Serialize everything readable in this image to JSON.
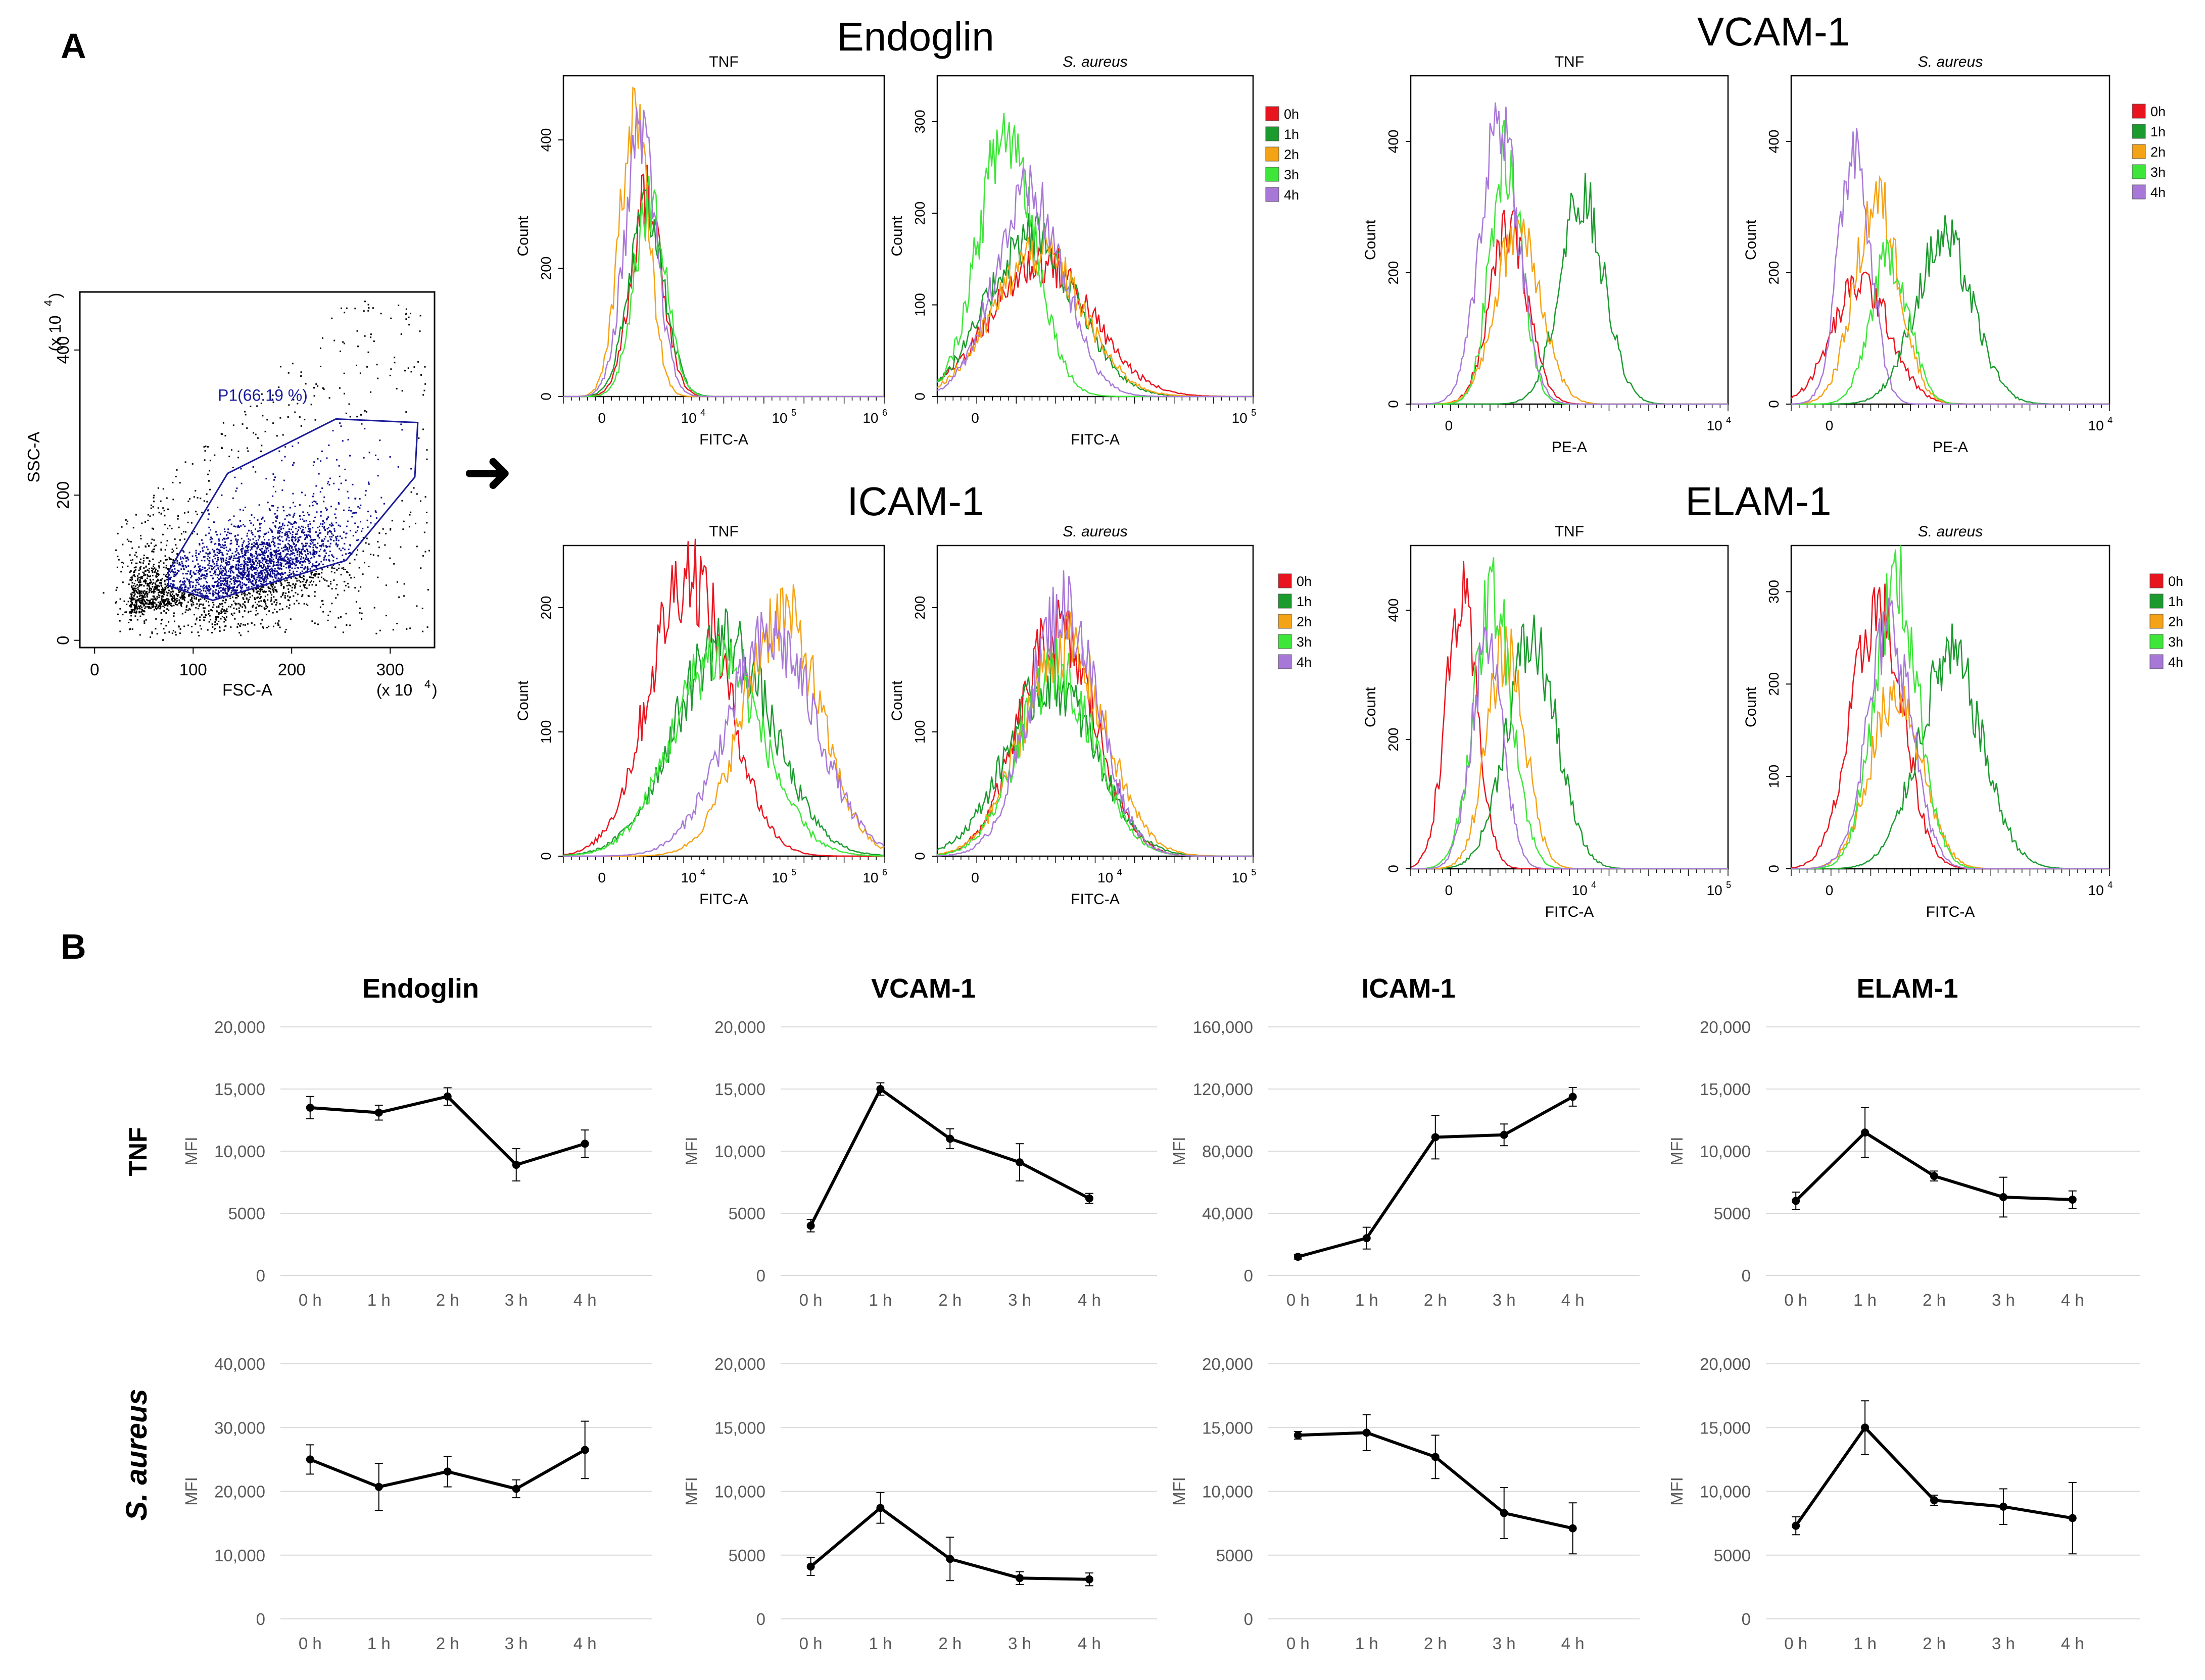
{
  "panels": {
    "a": "A",
    "b": "B"
  },
  "scatter": {
    "gate_label": "P1(66.19 %)",
    "xlabel": "FSC-A",
    "ylabel": "SSC-A",
    "x_exp": "(x 10",
    "y_exp": "(x 10",
    "exp_power": "4",
    "close": ")",
    "xticks": [
      "0",
      "100",
      "200",
      "300"
    ],
    "yticks": [
      "0",
      "200",
      "400"
    ],
    "colors": {
      "gated": "#0a0a8c",
      "ungated": "#000000",
      "gate": "#1a1a9a"
    }
  },
  "arrow": "➜",
  "histogram_groups": [
    {
      "title": "Endoglin",
      "xlabel": "FITC-A",
      "sub": [
        {
          "title": "TNF",
          "italic": false,
          "yticks": [
            "0",
            "200",
            "400"
          ],
          "xticks": [
            "0",
            "10^4",
            "10^5",
            "10^6"
          ]
        },
        {
          "title": "S. aureus",
          "italic": true,
          "yticks": [
            "0",
            "100",
            "200",
            "300"
          ],
          "xticks": [
            "0",
            "10^5"
          ]
        }
      ]
    },
    {
      "title": "VCAM-1",
      "xlabel": "PE-A",
      "sub": [
        {
          "title": "TNF",
          "italic": false,
          "yticks": [
            "0",
            "200",
            "400"
          ],
          "xticks": [
            "0",
            "10^4"
          ]
        },
        {
          "title": "S. aureus",
          "italic": true,
          "yticks": [
            "0",
            "200",
            "400"
          ],
          "xticks": [
            "0",
            "10^4"
          ]
        }
      ]
    },
    {
      "title": "ICAM-1",
      "xlabel": "FITC-A",
      "sub": [
        {
          "title": "TNF",
          "italic": false,
          "yticks": [
            "0",
            "100",
            "200"
          ],
          "xticks": [
            "0",
            "10^4",
            "10^5",
            "10^6"
          ]
        },
        {
          "title": "S. aureus",
          "italic": true,
          "yticks": [
            "0",
            "100",
            "200"
          ],
          "xticks": [
            "0",
            "10^4",
            "10^5"
          ]
        }
      ]
    },
    {
      "title": "ELAM-1",
      "xlabel": "FITC-A",
      "sub": [
        {
          "title": "TNF",
          "italic": false,
          "yticks": [
            "0",
            "200",
            "400"
          ],
          "xticks": [
            "0",
            "10^4",
            "10^5"
          ]
        },
        {
          "title": "S. aureus",
          "italic": true,
          "yticks": [
            "0",
            "100",
            "200",
            "300"
          ],
          "xticks": [
            "0",
            "10^4"
          ]
        }
      ]
    }
  ],
  "histogram_ylabel": "Count",
  "legend": [
    {
      "label": "0h",
      "color": "#e8141e"
    },
    {
      "label": "1h",
      "color": "#1b9a2e"
    },
    {
      "label": "2h",
      "color": "#f5a316"
    },
    {
      "label": "3h",
      "color": "#3ee63a"
    },
    {
      "label": "4h",
      "color": "#a878d8"
    }
  ],
  "row_labels": {
    "tnf": "TNF",
    "saureus": "S. aureus"
  },
  "chart_data": [
    {
      "type": "line",
      "title": "Endoglin",
      "row": "TNF",
      "ylabel": "MFI",
      "categories": [
        "0 h",
        "1 h",
        "2 h",
        "3 h",
        "4 h"
      ],
      "values": [
        13500,
        13100,
        14400,
        8900,
        10600
      ],
      "errors": [
        900,
        600,
        700,
        1300,
        1100
      ],
      "ylim": [
        0,
        20000
      ],
      "yticks": [
        0,
        5000,
        10000,
        15000,
        20000
      ],
      "ytick_labels": [
        "0",
        "5000",
        "10,000",
        "15,000",
        "20,000"
      ]
    },
    {
      "type": "line",
      "title": "VCAM-1",
      "row": "TNF",
      "ylabel": "MFI",
      "categories": [
        "0 h",
        "1 h",
        "2 h",
        "3 h",
        "4 h"
      ],
      "values": [
        4000,
        15000,
        11000,
        9100,
        6200
      ],
      "errors": [
        500,
        500,
        800,
        1500,
        400
      ],
      "ylim": [
        0,
        20000
      ],
      "yticks": [
        0,
        5000,
        10000,
        15000,
        20000
      ],
      "ytick_labels": [
        "0",
        "5000",
        "10,000",
        "15,000",
        "20,000"
      ]
    },
    {
      "type": "line",
      "title": "ICAM-1",
      "row": "TNF",
      "ylabel": "MFI",
      "categories": [
        "0 h",
        "1 h",
        "2 h",
        "3 h",
        "4 h"
      ],
      "values": [
        12000,
        24000,
        89000,
        90500,
        115000
      ],
      "errors": [
        1500,
        7000,
        14000,
        7000,
        6000
      ],
      "ylim": [
        0,
        160000
      ],
      "yticks": [
        0,
        40000,
        80000,
        120000,
        160000
      ],
      "ytick_labels": [
        "0",
        "40,000",
        "80,000",
        "120,000",
        "160,000"
      ]
    },
    {
      "type": "line",
      "title": "ELAM-1",
      "row": "TNF",
      "ylabel": "MFI",
      "categories": [
        "0 h",
        "1 h",
        "2 h",
        "3 h",
        "4 h"
      ],
      "values": [
        6000,
        11500,
        8000,
        6300,
        6100
      ],
      "errors": [
        700,
        2000,
        400,
        1600,
        700
      ],
      "ylim": [
        0,
        20000
      ],
      "yticks": [
        0,
        5000,
        10000,
        15000,
        20000
      ],
      "ytick_labels": [
        "0",
        "5000",
        "10,000",
        "15,000",
        "20,000"
      ]
    },
    {
      "type": "line",
      "title": "",
      "row": "S. aureus",
      "ylabel": "MFI",
      "categories": [
        "0 h",
        "1 h",
        "2 h",
        "3 h",
        "4 h"
      ],
      "values": [
        25000,
        20700,
        23100,
        20400,
        26500
      ],
      "errors": [
        2300,
        3700,
        2400,
        1400,
        4500
      ],
      "ylim": [
        0,
        40000
      ],
      "yticks": [
        0,
        10000,
        20000,
        30000,
        40000
      ],
      "ytick_labels": [
        "0",
        "10,000",
        "20,000",
        "30,000",
        "40,000"
      ]
    },
    {
      "type": "line",
      "title": "",
      "row": "S. aureus",
      "ylabel": "MFI",
      "categories": [
        "0 h",
        "1 h",
        "2 h",
        "3 h",
        "4 h"
      ],
      "values": [
        4100,
        8700,
        4700,
        3200,
        3100
      ],
      "errors": [
        700,
        1200,
        1700,
        500,
        500
      ],
      "ylim": [
        0,
        20000
      ],
      "yticks": [
        0,
        5000,
        10000,
        15000,
        20000
      ],
      "ytick_labels": [
        "0",
        "5000",
        "10,000",
        "15,000",
        "20,000"
      ]
    },
    {
      "type": "line",
      "title": "",
      "row": "S. aureus",
      "ylabel": "MFI",
      "categories": [
        "0 h",
        "1 h",
        "2 h",
        "3 h",
        "4 h"
      ],
      "values": [
        14400,
        14600,
        12700,
        8300,
        7100
      ],
      "errors": [
        300,
        1400,
        1700,
        2000,
        2000
      ],
      "ylim": [
        0,
        20000
      ],
      "yticks": [
        0,
        5000,
        10000,
        15000,
        20000
      ],
      "ytick_labels": [
        "0",
        "5000",
        "10,000",
        "15,000",
        "20,000"
      ]
    },
    {
      "type": "line",
      "title": "",
      "row": "S. aureus",
      "ylabel": "MFI",
      "categories": [
        "0 h",
        "1 h",
        "2 h",
        "3 h",
        "4 h"
      ],
      "values": [
        7300,
        15000,
        9300,
        8800,
        7900
      ],
      "errors": [
        700,
        2100,
        400,
        1400,
        2800
      ],
      "ylim": [
        0,
        20000
      ],
      "yticks": [
        0,
        5000,
        10000,
        15000,
        20000
      ],
      "ytick_labels": [
        "0",
        "5000",
        "10,000",
        "15,000",
        "20,000"
      ]
    }
  ]
}
